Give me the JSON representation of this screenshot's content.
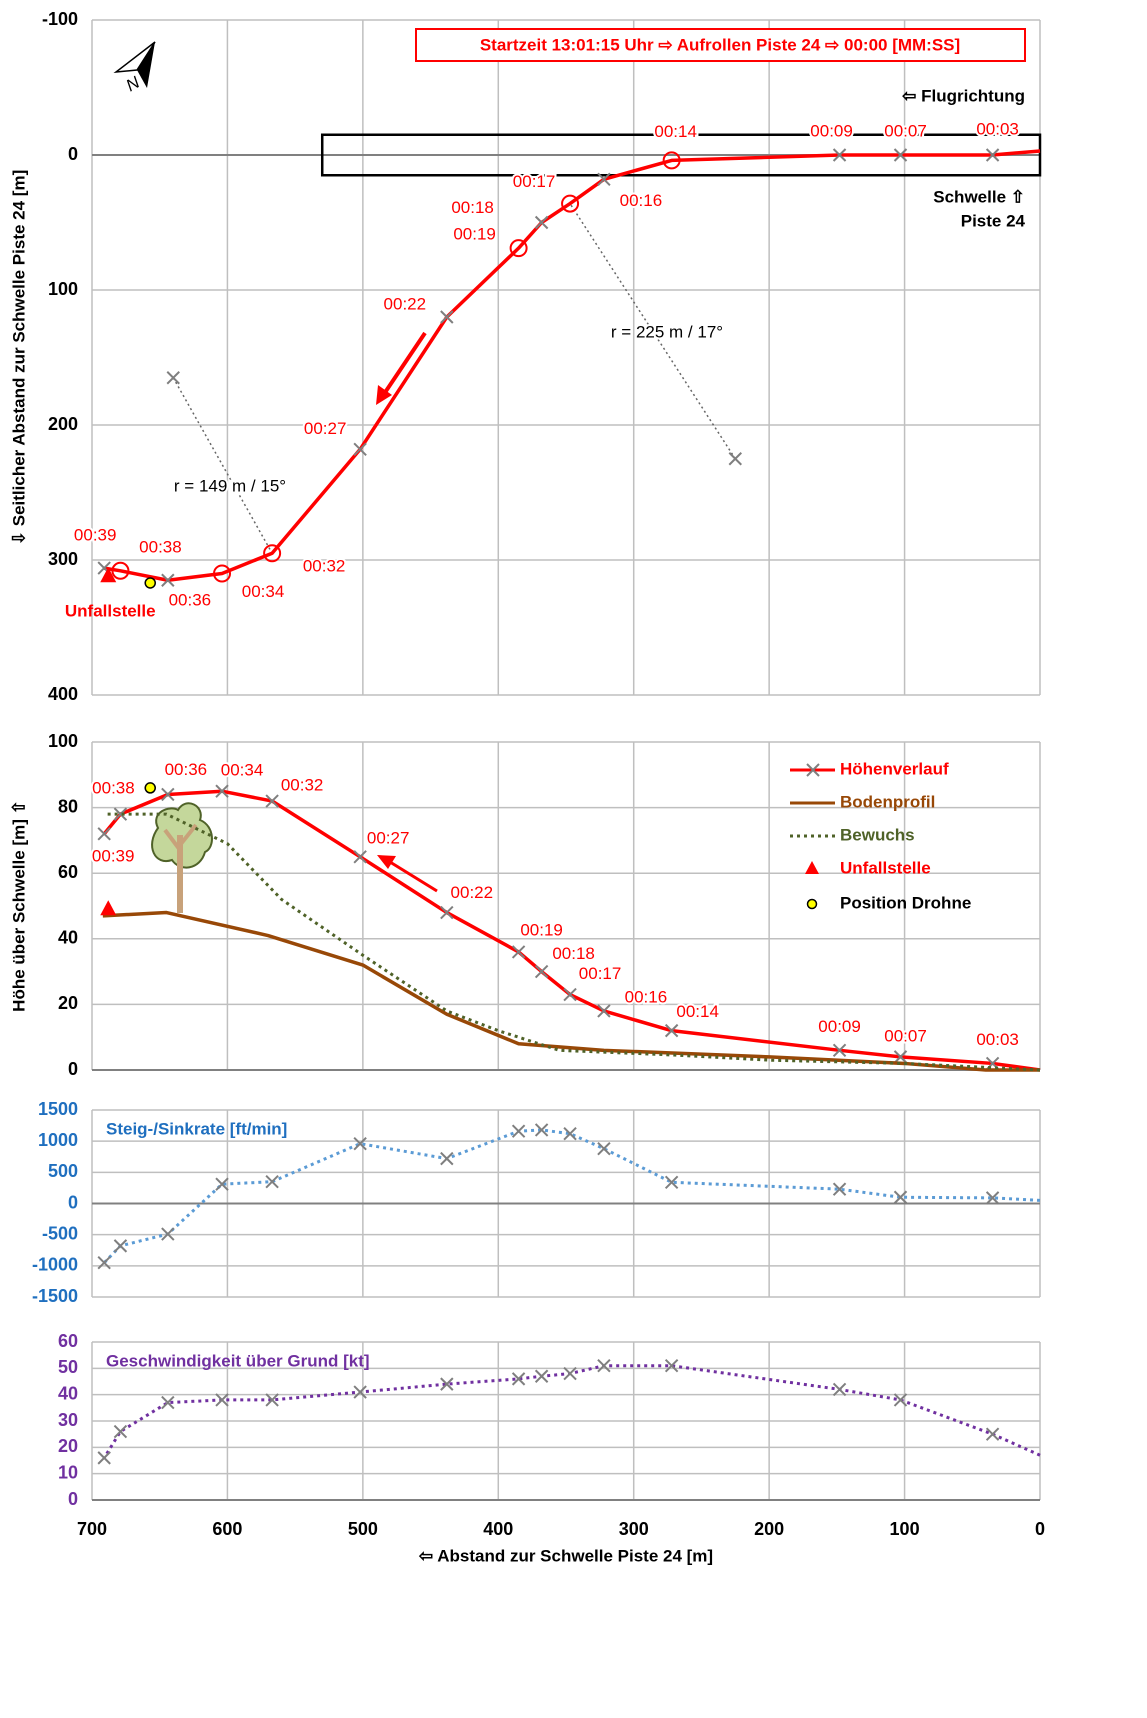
{
  "chart_data": [
    {
      "type": "line",
      "ylabel": "⇩ Seitlicher Abstand zur Schwelle Piste 24 [m]",
      "title_box": "Startzeit 13:01:15 Uhr ⇨ Aufrollen Piste 24 ⇨ 00:00 [MM:SS]",
      "annotations": [
        "⇦ Flugrichtung",
        "Schwelle ⇧",
        "Piste 24"
      ],
      "xlim": [
        700,
        0
      ],
      "xticks": [
        700,
        600,
        500,
        400,
        300,
        200,
        100,
        0
      ],
      "ylim": [
        400,
        -100
      ],
      "yticks": [
        -100,
        0,
        100,
        200,
        300,
        400
      ],
      "grid": true,
      "x": [
        0,
        35,
        103,
        148,
        272,
        322,
        347,
        368,
        385,
        438,
        502,
        567,
        604,
        644,
        679,
        691
      ],
      "series": [
        {
          "color": "#ff0000",
          "values": [
            -3,
            0,
            0,
            0,
            4,
            18,
            36,
            50,
            69,
            120,
            218,
            295,
            310,
            315,
            308,
            306
          ],
          "markers": [
            null,
            "x",
            "x",
            "x",
            "o",
            "x",
            "o",
            "x",
            "o",
            "x",
            "x",
            "o",
            "o",
            "x",
            "o",
            "x"
          ],
          "point_labels": [
            null,
            "00:03",
            "00:07",
            "00:09",
            "00:14",
            "00:16",
            "00:17",
            "00:18",
            "00:19",
            "00:22",
            "00:27",
            "00:32",
            "00:34",
            "00:36",
            "00:38",
            "00:39"
          ]
        }
      ],
      "runway": {
        "x": [
          530,
          0
        ],
        "y": [
          -15,
          15
        ]
      },
      "radii": [
        {
          "label": "r = 225 m / 17°",
          "center": [
            225,
            225
          ],
          "to": [
            347,
            36
          ]
        },
        {
          "label": "r = 149 m / 15°",
          "center": [
            640,
            165
          ],
          "to": [
            567,
            295
          ]
        }
      ],
      "points": [
        {
          "name": "Unfallstelle",
          "shape": "triangle",
          "color": "#ff0000",
          "x": 688,
          "y": 312
        },
        {
          "shape": "circle",
          "color": "#ffff00",
          "x": 657,
          "y": 317
        }
      ]
    },
    {
      "type": "line",
      "ylabel": "Höhe über Schwelle [m] ⇧",
      "xlim": [
        700,
        0
      ],
      "xticks": [
        700,
        600,
        500,
        400,
        300,
        200,
        100,
        0
      ],
      "ylim": [
        0,
        100
      ],
      "yticks": [
        0,
        20,
        40,
        60,
        80,
        100
      ],
      "grid": true,
      "legend": "upper right",
      "x": [
        0,
        35,
        103,
        148,
        272,
        322,
        347,
        368,
        385,
        438,
        502,
        567,
        604,
        644,
        679,
        691
      ],
      "series": [
        {
          "name": "Höhenverlauf",
          "color": "#ff0000",
          "values": [
            0,
            2,
            4,
            6,
            12,
            18,
            23,
            30,
            36,
            48,
            65,
            82,
            85,
            84,
            78,
            72
          ],
          "markers": [
            null,
            "x",
            "x",
            "x",
            "x",
            "x",
            "x",
            "x",
            "x",
            "x",
            "x",
            "x",
            "x",
            "x",
            "x",
            "x"
          ],
          "point_labels": [
            null,
            "00:03",
            "00:07",
            "00:09",
            "00:14",
            "00:16",
            "00:17",
            "00:18",
            "00:19",
            "00:22",
            "00:27",
            "00:32",
            "00:34",
            "00:36",
            "00:38",
            "00:39"
          ]
        },
        {
          "name": "Bodenprofil",
          "color": "#984807",
          "x": [
            0,
            40,
            100,
            200,
            322,
            385,
            438,
            500,
            570,
            645,
            692
          ],
          "values": [
            0,
            0,
            2,
            4,
            6,
            8,
            17,
            32,
            41,
            48,
            47
          ]
        },
        {
          "name": "Bewuchs",
          "color": "#4f6228",
          "dashed": true,
          "x": [
            0,
            100,
            200,
            272,
            355,
            370,
            400,
            438,
            500,
            560,
            600,
            645,
            690
          ],
          "values": [
            0,
            2,
            3,
            4.6,
            6,
            8,
            12,
            18,
            35,
            52,
            69,
            78,
            78
          ]
        }
      ],
      "points": [
        {
          "name": "Unfallstelle",
          "shape": "triangle",
          "color": "#ff0000",
          "text_color": "#ff0000",
          "x": 688,
          "y": 49
        },
        {
          "name": "Position Drohne",
          "shape": "circle",
          "color": "#ffff00",
          "text_color": "#000000",
          "x": 657,
          "y": 86
        }
      ]
    },
    {
      "type": "line",
      "title": "Steig-/Sinkrate [ft/min]",
      "title_color": "#1f6fbf",
      "tick_color": "#1f6fbf",
      "xlim": [
        700,
        0
      ],
      "xticks": [
        700,
        600,
        500,
        400,
        300,
        200,
        100,
        0
      ],
      "ylim": [
        -1500,
        1500
      ],
      "yticks": [
        -1500,
        -1000,
        -500,
        0,
        500,
        1000,
        1500
      ],
      "grid": true,
      "x": [
        0,
        35,
        103,
        148,
        272,
        322,
        347,
        368,
        385,
        438,
        502,
        567,
        604,
        644,
        679,
        691
      ],
      "series": [
        {
          "color": "#5b9bd5",
          "dashed": true,
          "values": [
            50,
            90,
            100,
            230,
            340,
            880,
            1120,
            1180,
            1160,
            720,
            960,
            350,
            310,
            -490,
            -680,
            -950
          ],
          "markers": [
            null,
            "x",
            "x",
            "x",
            "x",
            "x",
            "x",
            "x",
            "x",
            "x",
            "x",
            "x",
            "x",
            "x",
            "x",
            "x"
          ]
        }
      ]
    },
    {
      "type": "line",
      "title": "Geschwindigkeit über Grund [kt]",
      "title_color": "#7030a0",
      "tick_color": "#7030a0",
      "xlabel": "⇦ Abstand zur Schwelle Piste 24 [m]",
      "xlim": [
        700,
        0
      ],
      "xticks": [
        700,
        600,
        500,
        400,
        300,
        200,
        100,
        0
      ],
      "ylim": [
        0,
        60
      ],
      "yticks": [
        0,
        10,
        20,
        30,
        40,
        50,
        60
      ],
      "grid": true,
      "x": [
        0,
        35,
        103,
        148,
        272,
        322,
        347,
        368,
        385,
        438,
        502,
        567,
        604,
        644,
        679,
        691
      ],
      "series": [
        {
          "color": "#7030a0",
          "dashed": true,
          "values": [
            17,
            25,
            38,
            42,
            51,
            51,
            48,
            47,
            46,
            44,
            41,
            38,
            38,
            37,
            26,
            16
          ],
          "markers": [
            null,
            "x",
            "x",
            "x",
            "x",
            "x",
            "x",
            "x",
            "x",
            "x",
            "x",
            "x",
            "x",
            "x",
            "x",
            "x"
          ]
        }
      ]
    }
  ]
}
